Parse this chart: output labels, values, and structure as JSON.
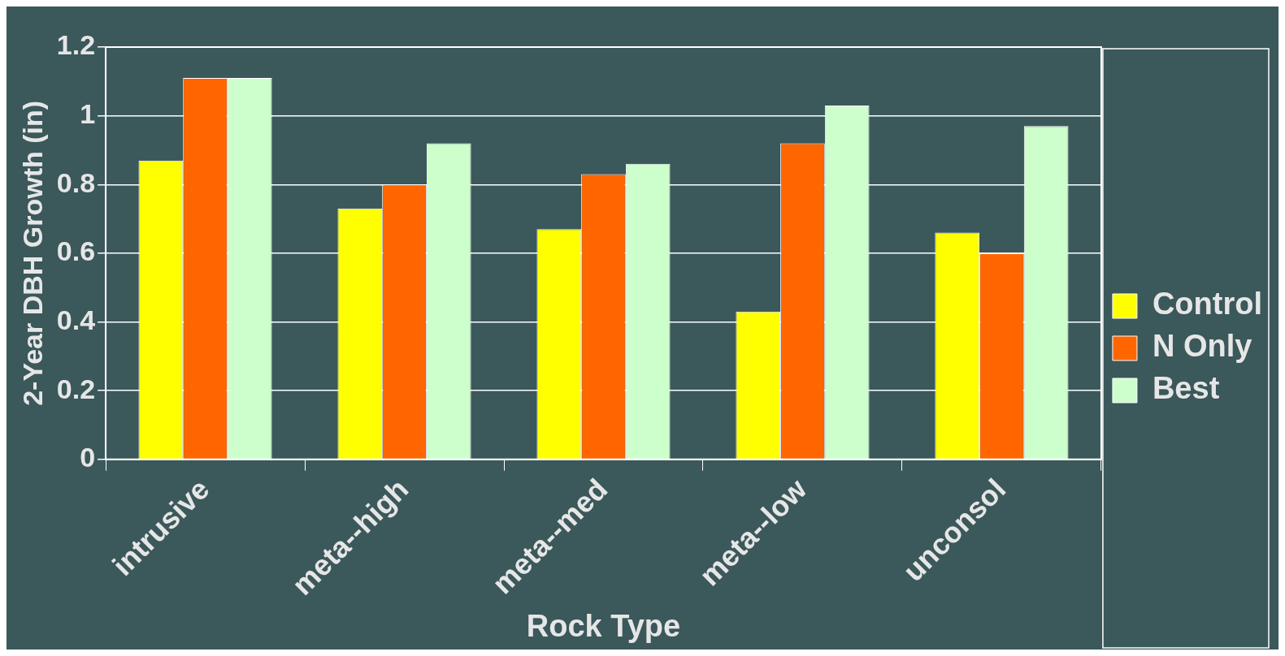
{
  "chart_data": {
    "type": "bar",
    "xlabel": "Rock Type",
    "ylabel": "2-Year DBH Growth (in)",
    "categories": [
      "intrusive",
      "meta--high",
      "meta--med",
      "meta--low",
      "unconsol"
    ],
    "series": [
      {
        "name": "Control",
        "color": "#ffff00",
        "values": [
          0.87,
          0.73,
          0.67,
          0.43,
          0.66
        ]
      },
      {
        "name": "N Only",
        "color": "#ff6600",
        "values": [
          1.11,
          0.8,
          0.83,
          0.92,
          0.6
        ]
      },
      {
        "name": "Best",
        "color": "#ccffcc",
        "values": [
          1.11,
          0.92,
          0.86,
          1.03,
          0.97
        ]
      }
    ],
    "ylim": [
      0,
      1.2
    ],
    "yticks": [
      0,
      0.2,
      0.4,
      0.6,
      0.8,
      1,
      1.2
    ],
    "grid": "y",
    "legend": "right"
  }
}
